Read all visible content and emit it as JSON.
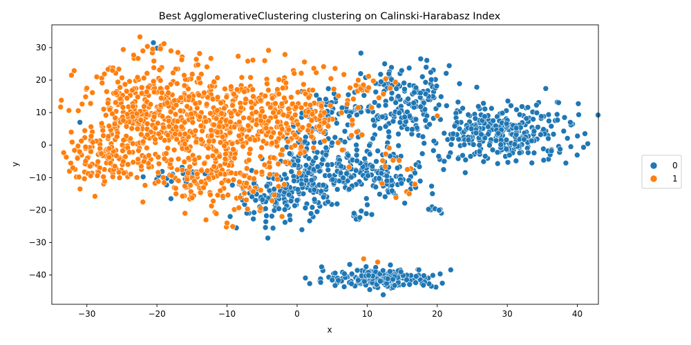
{
  "chart_data": {
    "type": "scatter",
    "title": "Best AgglomerativeClustering clustering on Calinski-Harabasz Index",
    "xlabel": "x",
    "ylabel": "y",
    "xlim": [
      -35,
      43
    ],
    "ylim": [
      -49,
      37
    ],
    "xticks": [
      -30,
      -20,
      -10,
      0,
      10,
      20,
      30,
      40
    ],
    "yticks": [
      -40,
      -30,
      -20,
      -10,
      0,
      10,
      20,
      30
    ],
    "grid": false,
    "legend_position": "right",
    "series": [
      {
        "name": "0",
        "color": "#1f77b4",
        "clusters": [
          {
            "cx": 31,
            "cy": 4,
            "sx": 4.5,
            "sy": 4.5,
            "n": 230
          },
          {
            "cx": 24,
            "cy": 2,
            "sx": 3,
            "sy": 4,
            "n": 60
          },
          {
            "cx": 14,
            "cy": 12,
            "sx": 4,
            "sy": 6,
            "n": 150
          },
          {
            "cx": 7,
            "cy": -7,
            "sx": 4,
            "sy": 5,
            "n": 150
          },
          {
            "cx": 13,
            "cy": -12,
            "sx": 3,
            "sy": 2.5,
            "n": 60
          },
          {
            "cx": -3,
            "cy": -17,
            "sx": 3.5,
            "sy": 3.5,
            "n": 110
          },
          {
            "cx": 1,
            "cy": -8,
            "sx": 2.5,
            "sy": 5,
            "n": 90
          },
          {
            "cx": 12,
            "cy": -41,
            "sx": 4,
            "sy": 1.5,
            "n": 200
          },
          {
            "cx": -16,
            "cy": -10,
            "sx": 2.5,
            "sy": 1.5,
            "n": 25
          },
          {
            "cx": 18,
            "cy": 16,
            "sx": 2,
            "sy": 4,
            "n": 35
          },
          {
            "cx": 19.5,
            "cy": -19.5,
            "sx": 0.6,
            "sy": 0.6,
            "n": 8
          },
          {
            "cx": 9,
            "cy": -22,
            "sx": 1,
            "sy": 0.8,
            "n": 8
          },
          {
            "cx": 4,
            "cy": 9,
            "sx": 3,
            "sy": 4,
            "n": 60
          }
        ],
        "points": [
          [
            -20.5,
            31.5
          ],
          [
            -20,
            29.8
          ],
          [
            -31,
            7
          ],
          [
            12.5,
            25
          ],
          [
            3.5,
            -37.5
          ],
          [
            -1,
            -23
          ],
          [
            -18,
            -16.5
          ],
          [
            33.5,
            -5.5
          ],
          [
            39,
            7
          ],
          [
            21,
            -5
          ],
          [
            24,
            -8.5
          ]
        ]
      },
      {
        "name": "1",
        "color": "#ff7f0e",
        "clusters": [
          {
            "cx": -21,
            "cy": 8,
            "sx": 5,
            "sy": 9,
            "n": 420
          },
          {
            "cx": -28,
            "cy": -4,
            "sx": 2.5,
            "sy": 4,
            "n": 90
          },
          {
            "cx": -12,
            "cy": 5,
            "sx": 4,
            "sy": 9,
            "n": 260
          },
          {
            "cx": -4,
            "cy": 8,
            "sx": 3.5,
            "sy": 8,
            "n": 180
          },
          {
            "cx": 3,
            "cy": 10,
            "sx": 3,
            "sy": 6,
            "n": 90
          },
          {
            "cx": -8,
            "cy": -13,
            "sx": 3,
            "sy": 5,
            "n": 60
          },
          {
            "cx": -15,
            "cy": -12,
            "sx": 2,
            "sy": 4,
            "n": 30
          },
          {
            "cx": 14,
            "cy": -8,
            "sx": 2,
            "sy": 4,
            "n": 12
          },
          {
            "cx": 10,
            "cy": 18,
            "sx": 2,
            "sy": 1.5,
            "n": 12
          }
        ],
        "points": [
          [
            9.5,
            -35
          ],
          [
            11.5,
            -36
          ],
          [
            -32,
            -7
          ],
          [
            -30,
            17.5
          ],
          [
            -22,
            -17.5
          ],
          [
            -13,
            -23
          ],
          [
            -10,
            -24
          ],
          [
            -16,
            -21
          ],
          [
            16,
            -15
          ],
          [
            20,
            9
          ],
          [
            -18,
            29
          ],
          [
            -17,
            28.5
          ],
          [
            -22,
            29
          ]
        ]
      }
    ]
  }
}
